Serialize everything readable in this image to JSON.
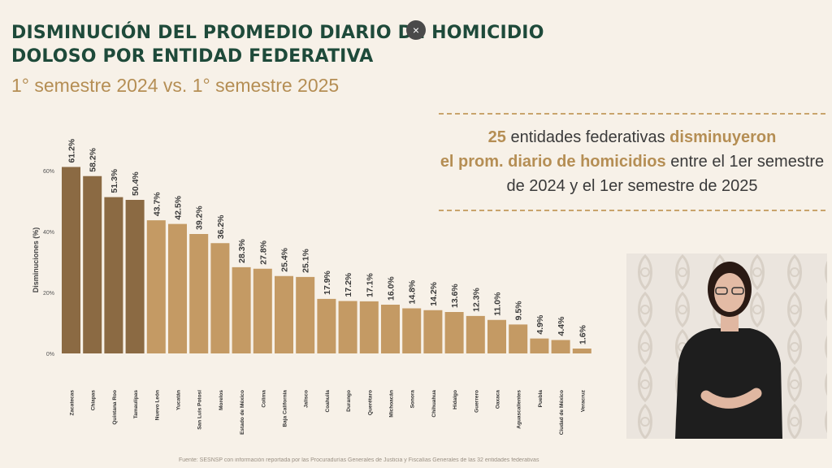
{
  "header": {
    "title_line1": "DISMINUCIÓN DEL PROMEDIO DIARIO DE HOMICIDIO",
    "title_line2": "DOLOSO POR ENTIDAD FEDERATIVA",
    "subtitle": "1° semestre 2024 vs. 1° semestre 2025",
    "close_glyph": "×"
  },
  "callout": {
    "count": "25",
    "part1": " entidades federativas ",
    "highlight1": "disminuyeron",
    "highlight2": "el prom. diario de homicidios",
    "part2": " entre el 1er semestre de 2024 y el 1er semestre de 2025"
  },
  "footer": {
    "source": "Fuente: SESNSP con información reportada por las Procuradurías Generales de Justicia y Fiscalías Generales de las 32 entidades federativas"
  },
  "colors": {
    "title": "#1e4a3a",
    "accent": "#b58e54",
    "bar_dark": "#8b6a43",
    "bar_light": "#c49a64",
    "background": "#f7f1e8"
  },
  "chart_data": {
    "type": "bar",
    "ylabel": "Disminuciones (%)",
    "ylim": [
      0,
      65
    ],
    "yticks": [
      0,
      20,
      40,
      60
    ],
    "ytick_labels": [
      "0%",
      "20%",
      "40%",
      "60%"
    ],
    "grid": false,
    "dark_bar_count": 4,
    "categories": [
      "Zacatecas",
      "Chiapas",
      "Quintana Roo",
      "Tamaulipas",
      "Nuevo León",
      "Yucatán",
      "San Luis Potosí",
      "Morelos",
      "Estado de México",
      "Colima",
      "Baja California",
      "Jalisco",
      "Coahuila",
      "Durango",
      "Querétaro",
      "Michoacán",
      "Sonora",
      "Chihuahua",
      "Hidalgo",
      "Guerrero",
      "Oaxaca",
      "Aguascalientes",
      "Puebla",
      "Ciudad de México",
      "Veracruz"
    ],
    "values": [
      61.2,
      58.2,
      51.3,
      50.4,
      43.7,
      42.5,
      39.2,
      36.2,
      28.3,
      27.8,
      25.4,
      25.1,
      17.9,
      17.2,
      17.1,
      16.0,
      14.8,
      14.2,
      13.6,
      12.3,
      11.0,
      9.5,
      4.9,
      4.4,
      1.6
    ],
    "value_labels": [
      "61.2%",
      "58.2%",
      "51.3%",
      "50.4%",
      "43.7%",
      "42.5%",
      "39.2%",
      "36.2%",
      "28.3%",
      "27.8%",
      "25.4%",
      "25.1%",
      "17.9%",
      "17.2%",
      "17.1%",
      "16.0%",
      "14.8%",
      "14.2%",
      "13.6%",
      "12.3%",
      "11.0%",
      "9.5%",
      "4.9%",
      "4.4%",
      "1.6%"
    ]
  }
}
